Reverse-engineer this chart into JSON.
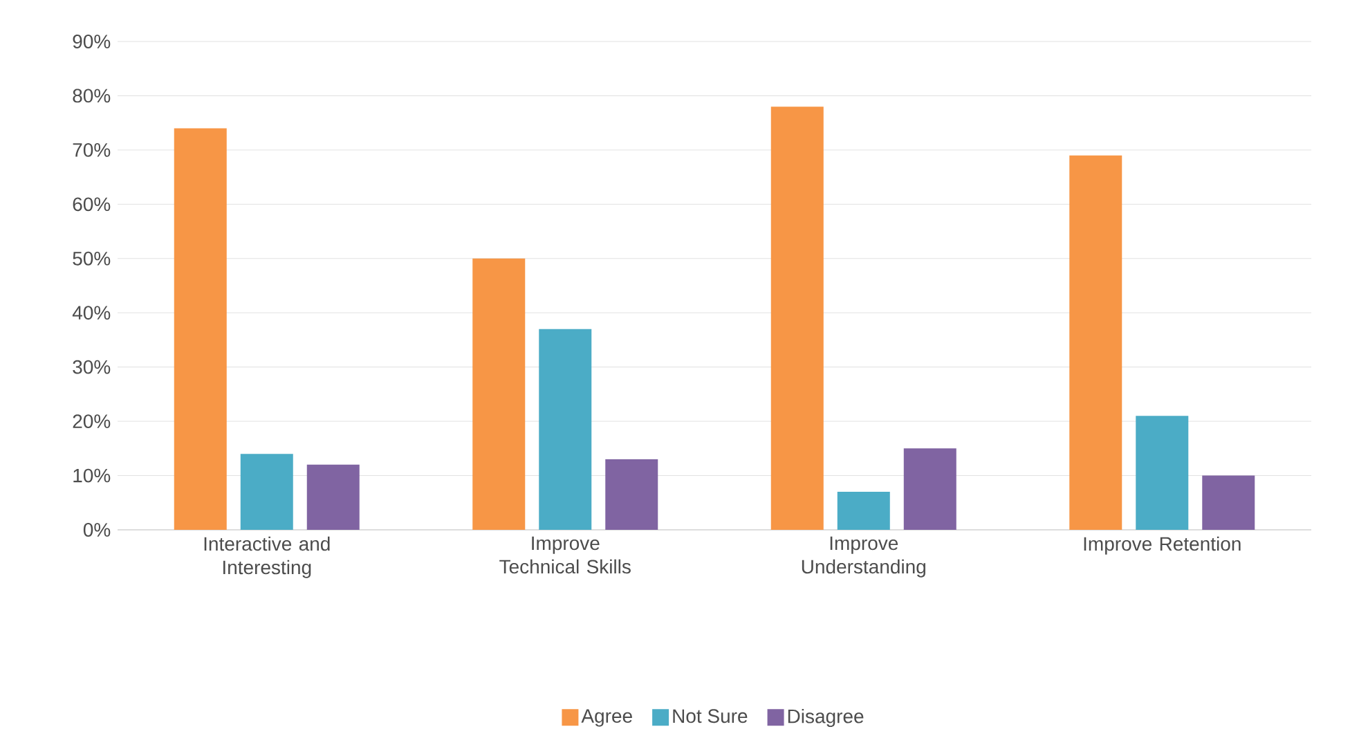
{
  "chart_data": {
    "type": "bar",
    "categories": [
      "Interactive and Interesting",
      "Improve Technical Skills",
      "Improve Understanding",
      "Improve Retention"
    ],
    "series": [
      {
        "name": "Agree",
        "color": "#f79646",
        "values": [
          74,
          50,
          78,
          69
        ]
      },
      {
        "name": "Not Sure",
        "color": "#4bacc6",
        "values": [
          14,
          37,
          7,
          21
        ]
      },
      {
        "name": "Disagree",
        "color": "#8064a2",
        "values": [
          12,
          13,
          15,
          10
        ]
      }
    ],
    "ylim": [
      0,
      90
    ],
    "yticks": [
      {
        "value": 0,
        "label": "0%"
      },
      {
        "value": 10,
        "label": "10%"
      },
      {
        "value": 20,
        "label": "20%"
      },
      {
        "value": 30,
        "label": "30%"
      },
      {
        "value": 40,
        "label": "40%"
      },
      {
        "value": 50,
        "label": "50%"
      },
      {
        "value": 60,
        "label": "60%"
      },
      {
        "value": 70,
        "label": "70%"
      },
      {
        "value": 80,
        "label": "80%"
      },
      {
        "value": 90,
        "label": "90%"
      }
    ],
    "grid": "y",
    "legend": "bottom"
  }
}
